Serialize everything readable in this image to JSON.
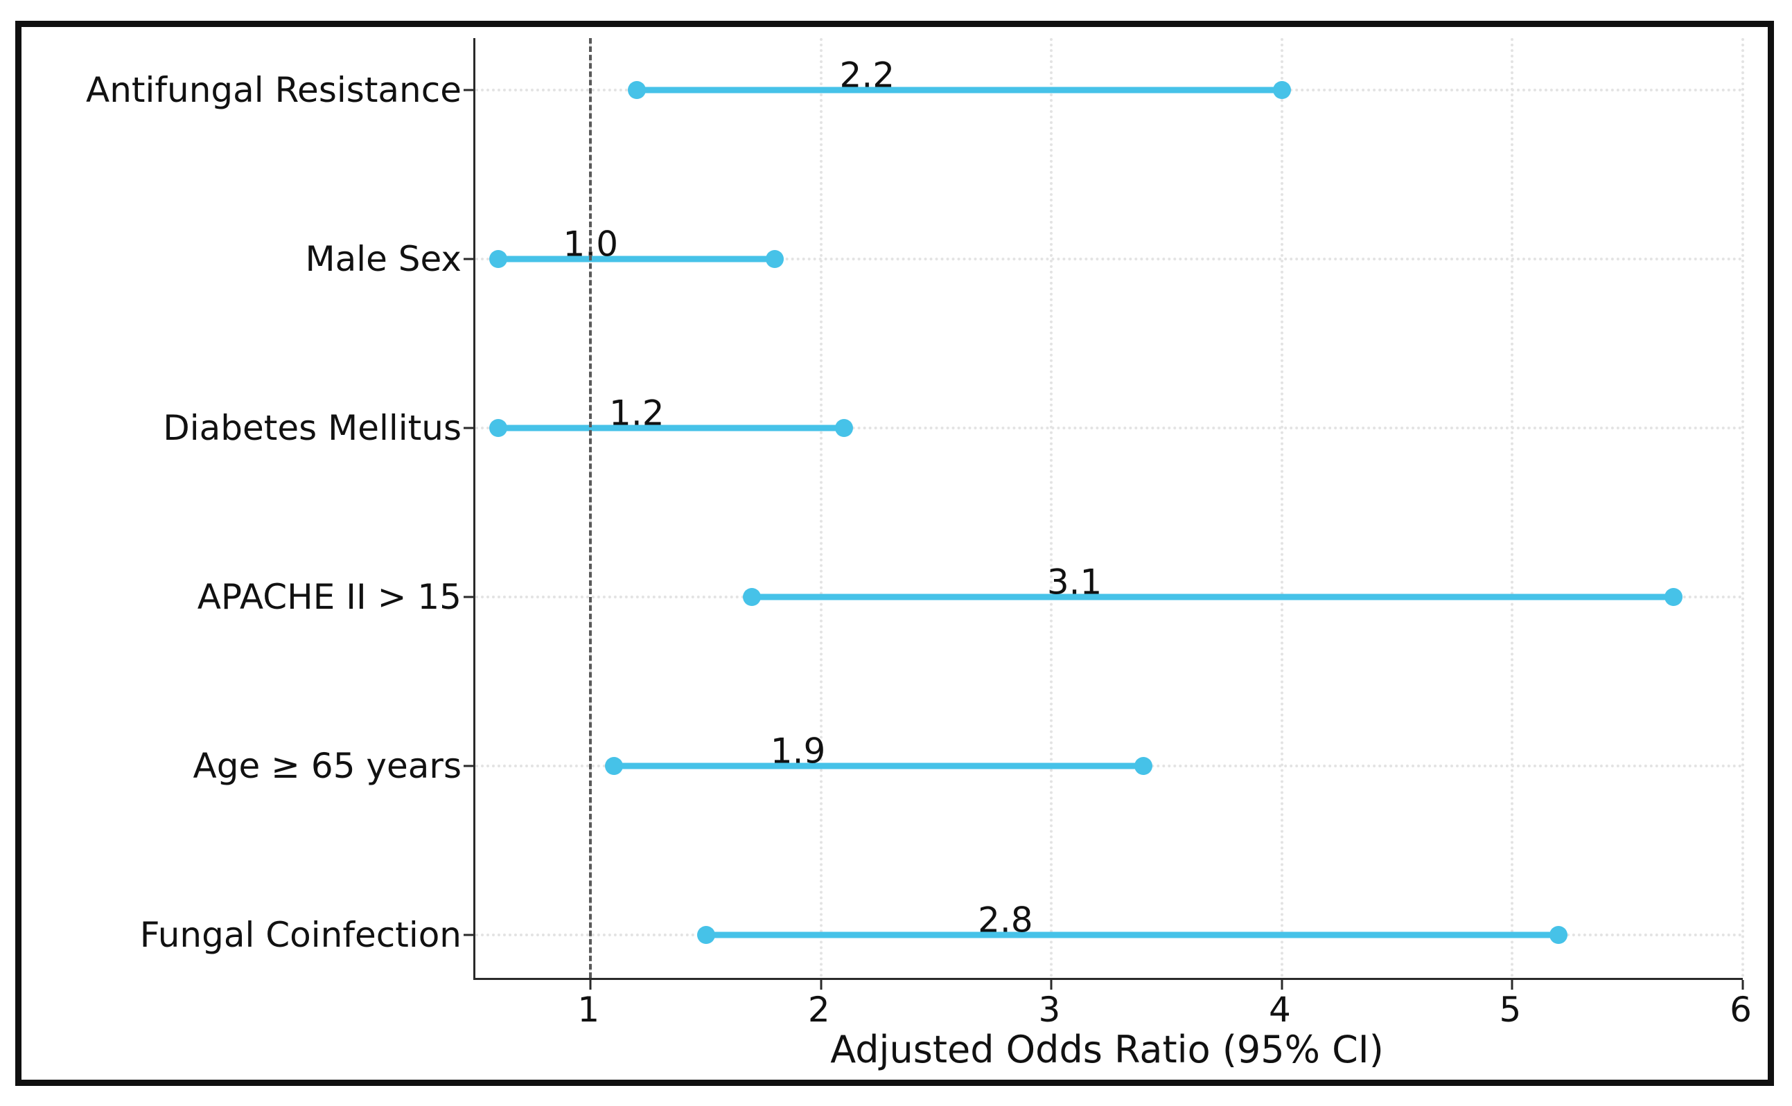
{
  "chart_data": {
    "type": "scatter",
    "variant": "forest_plot_with_95ci",
    "title": "",
    "xlabel": "Adjusted Odds Ratio (95% CI)",
    "ylabel": "",
    "xlim": [
      0.5,
      6.0
    ],
    "x_ticks": [
      1,
      2,
      3,
      4,
      5,
      6
    ],
    "grid": "dotted, both axes",
    "legend": "none",
    "reference_line": {
      "x": 1,
      "style": "dashed"
    },
    "categories": [
      "Antifungal Resistance",
      "Male Sex",
      "Diabetes Mellitus",
      "APACHE II > 15",
      "Age ≥ 65 years",
      "Fungal Coinfection"
    ],
    "rows": [
      {
        "label": "Antifungal Resistance",
        "odds_ratio": 2.2,
        "ci_low": 1.2,
        "ci_high": 4.0,
        "annotation": "2.2"
      },
      {
        "label": "Male Sex",
        "odds_ratio": 1.0,
        "ci_low": 0.6,
        "ci_high": 1.8,
        "annotation": "1.0"
      },
      {
        "label": "Diabetes Mellitus",
        "odds_ratio": 1.2,
        "ci_low": 0.6,
        "ci_high": 2.1,
        "annotation": "1.2"
      },
      {
        "label": "APACHE II > 15",
        "odds_ratio": 3.1,
        "ci_low": 1.7,
        "ci_high": 5.7,
        "annotation": "3.1"
      },
      {
        "label": "Age ≥ 65 years",
        "odds_ratio": 1.9,
        "ci_low": 1.1,
        "ci_high": 3.4,
        "annotation": "1.9"
      },
      {
        "label": "Fungal Coinfection",
        "odds_ratio": 2.8,
        "ci_low": 1.5,
        "ci_high": 5.2,
        "annotation": "2.8"
      }
    ],
    "colors": {
      "ci_bar": "#46C2E8",
      "reference_line": "#595959",
      "grid": "#E3E3E3",
      "spine": "#2A2A2A",
      "text": "#111111",
      "frame": "#101010"
    }
  }
}
